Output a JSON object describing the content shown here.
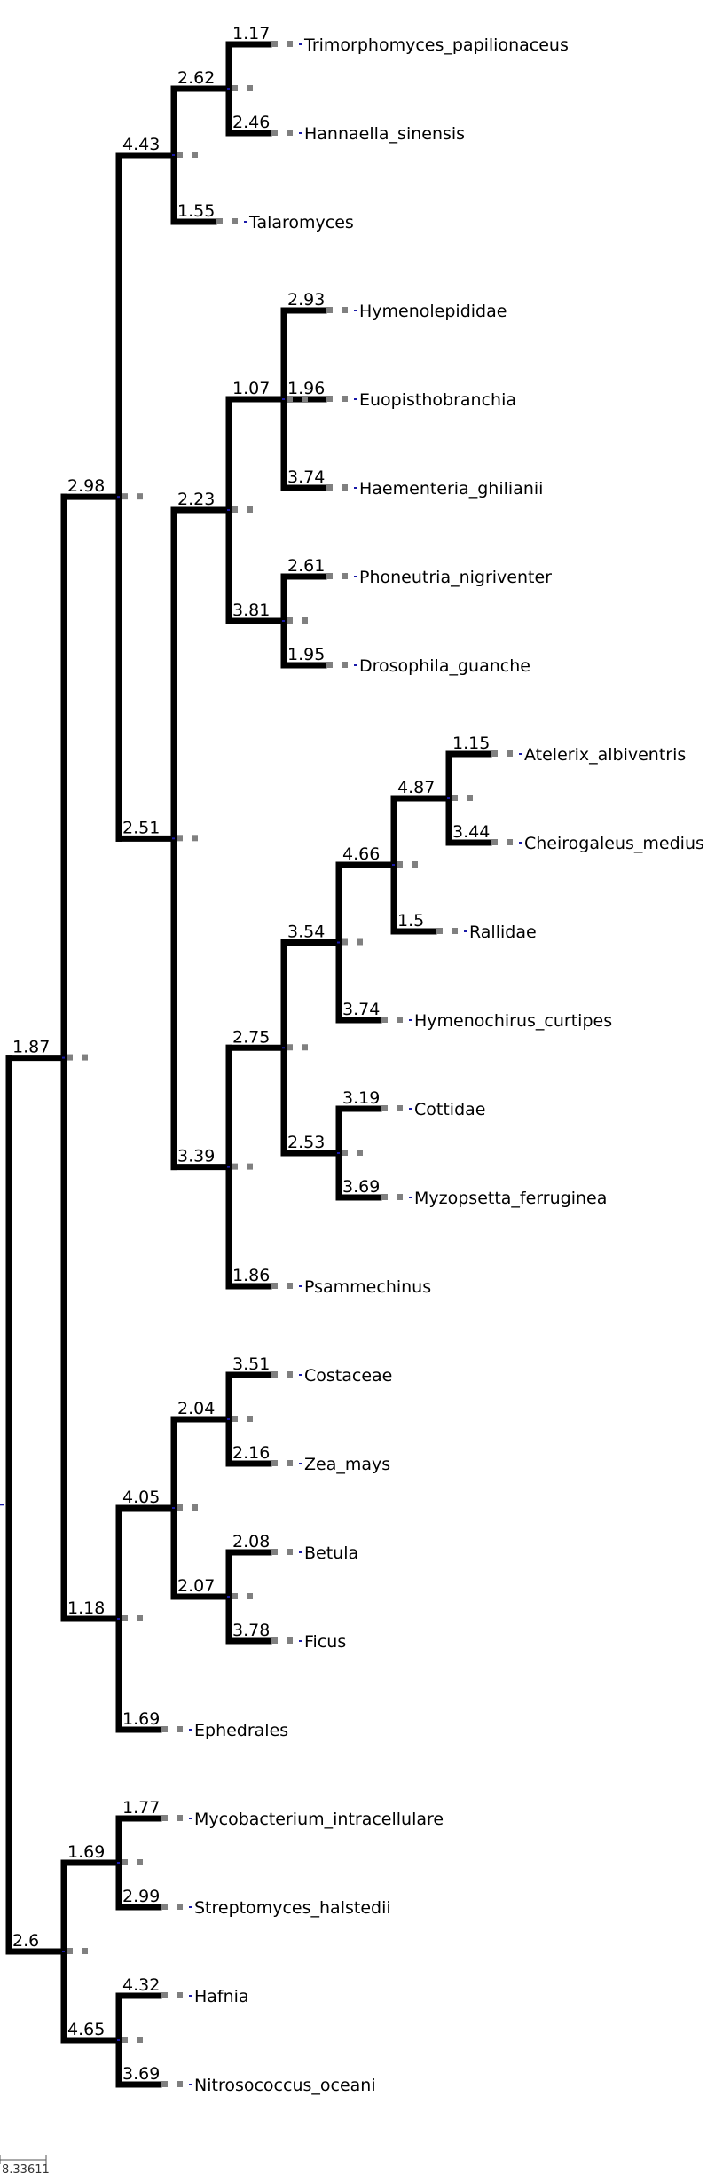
{
  "tree": {
    "node": "root",
    "children": [
      {
        "label": "1.87",
        "children": [
          {
            "label": "2.98",
            "children": [
              {
                "label": "4.43",
                "children": [
                  {
                    "label": "2.62",
                    "children": [
                      {
                        "label": "1.17",
                        "leaf": "Trimorphomyces_papilionaceus"
                      },
                      {
                        "label": "2.46",
                        "leaf": "Hannaella_sinensis"
                      }
                    ]
                  },
                  {
                    "label": "1.55",
                    "leaf": "Talaromyces"
                  }
                ]
              },
              {
                "label": "2.51",
                "children": [
                  {
                    "label": "2.23",
                    "children": [
                      {
                        "label": "1.07",
                        "children": [
                          {
                            "label": "2.93",
                            "leaf": "Hymenolepididae"
                          },
                          {
                            "label": "1.96",
                            "leaf": "Euopisthobranchia"
                          },
                          {
                            "label": "3.74",
                            "leaf": "Haementeria_ghilianii"
                          }
                        ]
                      },
                      {
                        "label": "3.81",
                        "children": [
                          {
                            "label": "2.61",
                            "leaf": "Phoneutria_nigriventer"
                          },
                          {
                            "label": "1.95",
                            "leaf": "Drosophila_guanche"
                          }
                        ]
                      }
                    ]
                  },
                  {
                    "label": "3.39",
                    "children": [
                      {
                        "label": "2.75",
                        "children": [
                          {
                            "label": "3.54",
                            "children": [
                              {
                                "label": "4.66",
                                "children": [
                                  {
                                    "label": "4.87",
                                    "children": [
                                      {
                                        "label": "1.15",
                                        "leaf": "Atelerix_albiventris"
                                      },
                                      {
                                        "label": "3.44",
                                        "leaf": "Cheirogaleus_medius"
                                      }
                                    ]
                                  },
                                  {
                                    "label": "1.5",
                                    "leaf": "Rallidae"
                                  }
                                ]
                              },
                              {
                                "label": "3.74",
                                "leaf": "Hymenochirus_curtipes"
                              }
                            ]
                          },
                          {
                            "label": "2.53",
                            "children": [
                              {
                                "label": "3.19",
                                "leaf": "Cottidae"
                              },
                              {
                                "label": "3.69",
                                "leaf": "Myzopsetta_ferruginea"
                              }
                            ]
                          }
                        ]
                      },
                      {
                        "label": "1.86",
                        "leaf": "Psammechinus"
                      }
                    ]
                  }
                ]
              }
            ]
          },
          {
            "label": "1.18",
            "children": [
              {
                "label": "4.05",
                "children": [
                  {
                    "label": "2.04",
                    "children": [
                      {
                        "label": "3.51",
                        "leaf": "Costaceae"
                      },
                      {
                        "label": "2.16",
                        "leaf": "Zea_mays"
                      }
                    ]
                  },
                  {
                    "label": "2.07",
                    "children": [
                      {
                        "label": "2.08",
                        "leaf": "Betula"
                      },
                      {
                        "label": "3.78",
                        "leaf": "Ficus"
                      }
                    ]
                  }
                ]
              },
              {
                "label": "1.69",
                "leaf": "Ephedrales"
              }
            ]
          }
        ]
      },
      {
        "label": "2.6",
        "children": [
          {
            "label": "1.69",
            "children": [
              {
                "label": "1.77",
                "leaf": "Mycobacterium_intracellulare"
              },
              {
                "label": "2.99",
                "leaf": "Streptomyces_halstedii"
              }
            ]
          },
          {
            "label": "4.65",
            "children": [
              {
                "label": "4.32",
                "leaf": "Hafnia"
              },
              {
                "label": "3.69",
                "leaf": "Nitrosococcus_oceani"
              }
            ]
          }
        ]
      }
    ]
  },
  "scale_bar": {
    "label": "8.33611"
  }
}
